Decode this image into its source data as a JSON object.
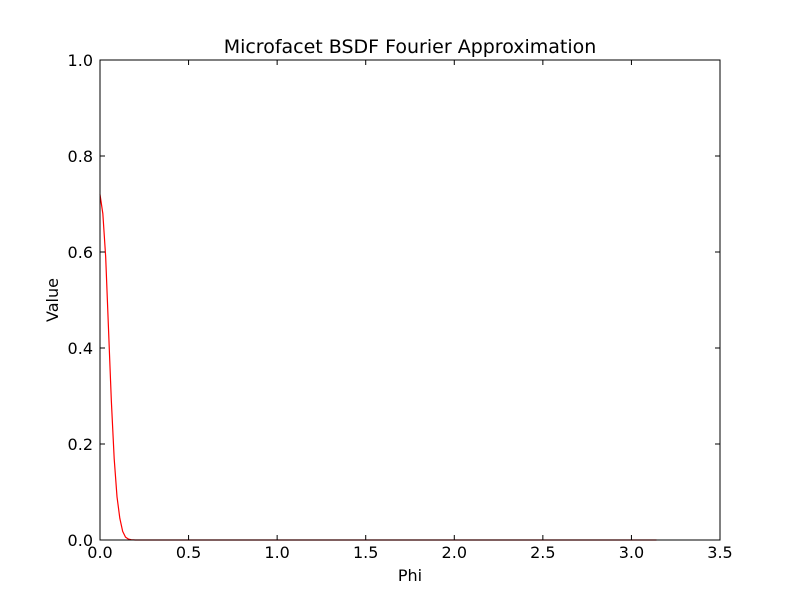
{
  "chart_data": {
    "type": "line",
    "title": "Microfacet BSDF Fourier Approximation",
    "xlabel": "Phi",
    "ylabel": "Value",
    "xlim": [
      0,
      3.5
    ],
    "ylim": [
      0,
      1.0
    ],
    "xticks": [
      0.0,
      0.5,
      1.0,
      1.5,
      2.0,
      2.5,
      3.0,
      3.5
    ],
    "xtick_labels": [
      "0.0",
      "0.5",
      "1.0",
      "1.5",
      "2.0",
      "2.5",
      "3.0",
      "3.5"
    ],
    "yticks": [
      0.0,
      0.2,
      0.4,
      0.6,
      0.8,
      1.0
    ],
    "ytick_labels": [
      "0.0",
      "0.2",
      "0.4",
      "0.6",
      "0.8",
      "1.0"
    ],
    "grid": false,
    "legend": "none",
    "series": [
      {
        "color": "#ff0000",
        "x": [
          0.0,
          0.016,
          0.032,
          0.048,
          0.064,
          0.08,
          0.096,
          0.112,
          0.128,
          0.144,
          0.16,
          0.176,
          0.2,
          0.25,
          0.3,
          0.5,
          1.0,
          1.5,
          2.0,
          2.5,
          3.0,
          3.1416
        ],
        "y": [
          0.72,
          0.68,
          0.59,
          0.44,
          0.29,
          0.17,
          0.09,
          0.045,
          0.018,
          0.006,
          0.002,
          0.0005,
          0.0,
          0.0,
          0.0,
          0.0,
          0.0,
          0.0,
          0.0,
          0.0,
          0.0,
          0.0
        ]
      }
    ]
  }
}
